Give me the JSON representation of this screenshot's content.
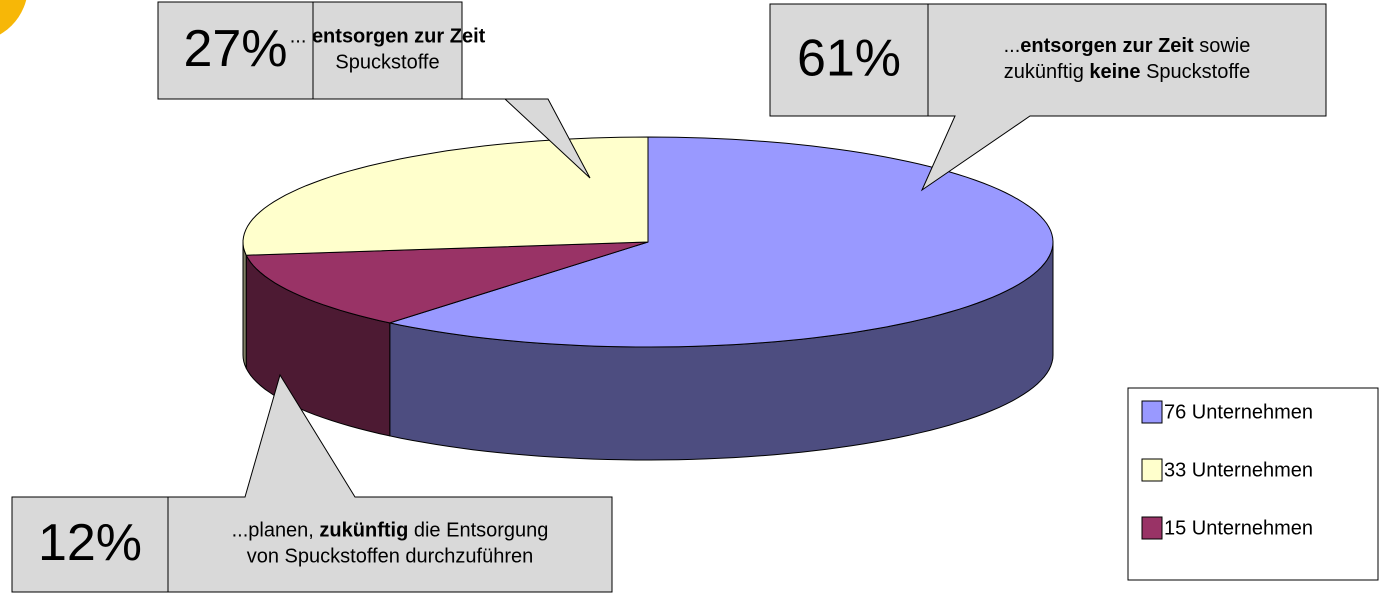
{
  "chart_data": {
    "type": "pie",
    "categories": [
      "76 Unternehmen",
      "33 Unternehmen",
      "15 Unternehmen"
    ],
    "values": [
      61,
      27,
      12
    ],
    "value_labels": [
      "61%",
      "27%",
      "12%"
    ],
    "colors": [
      "#9999ff",
      "#ffffcc",
      "#993366"
    ],
    "legend": "right",
    "annotations": [
      {
        "lines": [
          [
            {
              "text": "...",
              "bold": false
            },
            {
              "text": "entsorgen zur Zeit",
              "bold": true
            },
            {
              "text": " sowie",
              "bold": false
            }
          ],
          [
            {
              "text": "zukünftig ",
              "bold": false
            },
            {
              "text": "keine",
              "bold": true
            },
            {
              "text": " Spuckstoffe",
              "bold": false
            }
          ]
        ]
      },
      {
        "lines": [
          [
            {
              "text": "... ",
              "bold": false
            },
            {
              "text": "entsorgen zur Zeit",
              "bold": true
            }
          ],
          [
            {
              "text": "Spuckstoffe",
              "bold": false
            }
          ]
        ]
      },
      {
        "lines": [
          [
            {
              "text": "...planen, ",
              "bold": false
            },
            {
              "text": "zukünftig",
              "bold": true
            },
            {
              "text": " die Entsorgung",
              "bold": false
            }
          ],
          [
            {
              "text": "von Spuckstoffen durchzuführen",
              "bold": false
            }
          ]
        ]
      }
    ]
  }
}
